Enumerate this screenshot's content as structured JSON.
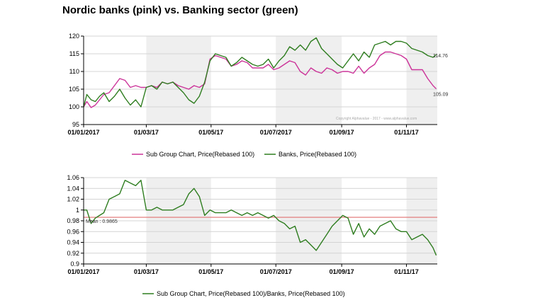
{
  "page": {
    "title": "Nordic banks (pink) vs. Banking sector (green)"
  },
  "colors": {
    "pink": "#cc3399",
    "green": "#2e7d1f",
    "mean_line": "#e07070",
    "band": "#efefef",
    "axis": "#000000"
  },
  "chart_data": [
    {
      "type": "line",
      "ylim": [
        95,
        120
      ],
      "yticks": [
        "95",
        "100",
        "105",
        "110",
        "115",
        "120"
      ],
      "xticks": [
        "01/01/2017",
        "01/03/17",
        "01/05/17",
        "01/07/2017",
        "01/09/17",
        "01/11/17"
      ],
      "x_domain": [
        "2017-01-01",
        "2017-11-30"
      ],
      "shaded_bands": [
        [
          "2017-03-01",
          "2017-05-01"
        ],
        [
          "2017-07-01",
          "2017-09-01"
        ],
        [
          "2017-11-01",
          "2017-11-30"
        ]
      ],
      "grid": "horizontal",
      "watermark": "Copyright Alphavalue - 2017 - www.alphavalue.com",
      "series": [
        {
          "name": "Sub Group Chart, Price(Rebased 100)",
          "color": "#cc3399",
          "end_label": "105.09",
          "x": [
            "2017-01-01",
            "2017-01-04",
            "2017-01-08",
            "2017-01-12",
            "2017-01-16",
            "2017-01-20",
            "2017-01-25",
            "2017-01-30",
            "2017-02-04",
            "2017-02-09",
            "2017-02-14",
            "2017-02-19",
            "2017-02-24",
            "2017-03-01",
            "2017-03-06",
            "2017-03-11",
            "2017-03-16",
            "2017-03-21",
            "2017-03-26",
            "2017-03-31",
            "2017-04-05",
            "2017-04-10",
            "2017-04-15",
            "2017-04-20",
            "2017-04-25",
            "2017-04-30",
            "2017-05-05",
            "2017-05-10",
            "2017-05-15",
            "2017-05-20",
            "2017-05-25",
            "2017-05-30",
            "2017-06-04",
            "2017-06-09",
            "2017-06-14",
            "2017-06-19",
            "2017-06-24",
            "2017-06-29",
            "2017-07-04",
            "2017-07-09",
            "2017-07-14",
            "2017-07-19",
            "2017-07-24",
            "2017-07-29",
            "2017-08-03",
            "2017-08-08",
            "2017-08-13",
            "2017-08-18",
            "2017-08-23",
            "2017-08-28",
            "2017-09-02",
            "2017-09-07",
            "2017-09-12",
            "2017-09-17",
            "2017-09-22",
            "2017-09-27",
            "2017-10-02",
            "2017-10-07",
            "2017-10-12",
            "2017-10-17",
            "2017-10-22",
            "2017-10-27",
            "2017-11-01",
            "2017-11-06",
            "2017-11-11",
            "2017-11-16",
            "2017-11-21",
            "2017-11-26",
            "2017-11-29"
          ],
          "values": [
            100,
            101.5,
            99.8,
            100.5,
            102,
            103.5,
            104,
            106,
            108,
            107.5,
            105.5,
            106,
            105.5,
            105.5,
            106,
            105.5,
            107,
            106.5,
            107,
            106,
            105.5,
            105,
            106,
            105.5,
            106.5,
            113.5,
            114.5,
            114,
            113.5,
            111.5,
            112,
            113,
            112.5,
            111,
            111,
            111,
            112,
            110.5,
            111,
            112,
            113,
            112.5,
            110,
            109,
            111,
            110,
            109.5,
            111,
            110.5,
            109.5,
            110,
            110,
            109.5,
            111.5,
            109.5,
            111,
            112,
            114.5,
            115.5,
            115.5,
            115,
            114.5,
            113.5,
            110.5,
            110.5,
            110.5,
            108,
            106,
            105.09
          ]
        },
        {
          "name": "Banks, Price(Rebased 100)",
          "color": "#2e7d1f",
          "end_label": "114.76",
          "x": [
            "2017-01-01",
            "2017-01-04",
            "2017-01-08",
            "2017-01-12",
            "2017-01-16",
            "2017-01-20",
            "2017-01-25",
            "2017-01-30",
            "2017-02-04",
            "2017-02-09",
            "2017-02-14",
            "2017-02-19",
            "2017-02-24",
            "2017-03-01",
            "2017-03-06",
            "2017-03-11",
            "2017-03-16",
            "2017-03-21",
            "2017-03-26",
            "2017-03-31",
            "2017-04-05",
            "2017-04-10",
            "2017-04-15",
            "2017-04-20",
            "2017-04-25",
            "2017-04-30",
            "2017-05-05",
            "2017-05-10",
            "2017-05-15",
            "2017-05-20",
            "2017-05-25",
            "2017-05-30",
            "2017-06-04",
            "2017-06-09",
            "2017-06-14",
            "2017-06-19",
            "2017-06-24",
            "2017-06-29",
            "2017-07-04",
            "2017-07-09",
            "2017-07-14",
            "2017-07-19",
            "2017-07-24",
            "2017-07-29",
            "2017-08-03",
            "2017-08-08",
            "2017-08-13",
            "2017-08-18",
            "2017-08-23",
            "2017-08-28",
            "2017-09-02",
            "2017-09-07",
            "2017-09-12",
            "2017-09-17",
            "2017-09-22",
            "2017-09-27",
            "2017-10-02",
            "2017-10-07",
            "2017-10-12",
            "2017-10-17",
            "2017-10-22",
            "2017-10-27",
            "2017-11-01",
            "2017-11-06",
            "2017-11-11",
            "2017-11-16",
            "2017-11-21",
            "2017-11-26",
            "2017-11-29"
          ],
          "values": [
            100,
            103.5,
            102,
            101.5,
            103,
            104,
            101.5,
            103,
            105,
            102.5,
            100.5,
            102,
            100,
            105.5,
            106,
            105,
            107,
            106.5,
            107,
            105.5,
            104,
            102,
            101,
            103,
            107,
            113,
            115,
            114.5,
            114,
            111.5,
            112.5,
            114,
            113,
            112,
            111.5,
            112,
            113.5,
            111,
            113,
            114.5,
            117,
            116,
            117.5,
            116,
            118.5,
            119.5,
            116.5,
            115,
            113.5,
            112,
            111,
            113,
            115,
            113,
            115.5,
            114,
            117.5,
            118,
            118.5,
            117.5,
            118.5,
            118.5,
            118,
            116.5,
            116,
            115.5,
            114.5,
            114,
            114.76
          ]
        }
      ],
      "legend": [
        "Sub Group Chart, Price(Rebased 100)",
        "Banks, Price(Rebased 100)"
      ]
    },
    {
      "type": "line",
      "ylim": [
        0.9,
        1.06
      ],
      "yticks": [
        "0.9",
        "0.92",
        "0.94",
        "0.96",
        "0.98",
        "1",
        "1.02",
        "1.04",
        "1.06"
      ],
      "xticks": [
        "01/01/2017",
        "01/03/17",
        "01/05/17",
        "01/07/2017",
        "01/09/17",
        "01/11/17"
      ],
      "x_domain": [
        "2017-01-01",
        "2017-11-30"
      ],
      "shaded_bands": [
        [
          "2017-03-01",
          "2017-05-01"
        ],
        [
          "2017-07-01",
          "2017-09-01"
        ],
        [
          "2017-11-01",
          "2017-11-30"
        ]
      ],
      "grid": "horizontal",
      "mean": {
        "label": "Mean : 0.9865",
        "value": 0.9865
      },
      "series": [
        {
          "name": "Sub Group Chart, Price(Rebased 100)/Banks, Price(Rebased 100)",
          "color": "#2e7d1f",
          "x": [
            "2017-01-01",
            "2017-01-04",
            "2017-01-08",
            "2017-01-12",
            "2017-01-16",
            "2017-01-20",
            "2017-01-25",
            "2017-01-30",
            "2017-02-04",
            "2017-02-09",
            "2017-02-14",
            "2017-02-19",
            "2017-02-24",
            "2017-03-01",
            "2017-03-06",
            "2017-03-11",
            "2017-03-16",
            "2017-03-21",
            "2017-03-26",
            "2017-03-31",
            "2017-04-05",
            "2017-04-10",
            "2017-04-15",
            "2017-04-20",
            "2017-04-25",
            "2017-04-30",
            "2017-05-05",
            "2017-05-10",
            "2017-05-15",
            "2017-05-20",
            "2017-05-25",
            "2017-05-30",
            "2017-06-04",
            "2017-06-09",
            "2017-06-14",
            "2017-06-19",
            "2017-06-24",
            "2017-06-29",
            "2017-07-04",
            "2017-07-09",
            "2017-07-14",
            "2017-07-19",
            "2017-07-24",
            "2017-07-29",
            "2017-08-03",
            "2017-08-08",
            "2017-08-13",
            "2017-08-18",
            "2017-08-23",
            "2017-08-28",
            "2017-09-02",
            "2017-09-07",
            "2017-09-12",
            "2017-09-17",
            "2017-09-22",
            "2017-09-27",
            "2017-10-02",
            "2017-10-07",
            "2017-10-12",
            "2017-10-17",
            "2017-10-22",
            "2017-10-27",
            "2017-11-01",
            "2017-11-06",
            "2017-11-11",
            "2017-11-16",
            "2017-11-21",
            "2017-11-26",
            "2017-11-29"
          ],
          "values": [
            1.0,
            1.0,
            0.975,
            0.985,
            0.99,
            0.995,
            1.02,
            1.025,
            1.03,
            1.055,
            1.05,
            1.045,
            1.055,
            1.0,
            1.0,
            1.005,
            1.0,
            1.0,
            1.0,
            1.005,
            1.01,
            1.03,
            1.04,
            1.025,
            0.99,
            1.0,
            0.995,
            0.995,
            0.995,
            1.0,
            0.995,
            0.99,
            0.995,
            0.99,
            0.995,
            0.99,
            0.985,
            0.99,
            0.98,
            0.975,
            0.965,
            0.97,
            0.94,
            0.945,
            0.935,
            0.925,
            0.94,
            0.955,
            0.97,
            0.98,
            0.99,
            0.985,
            0.955,
            0.975,
            0.95,
            0.965,
            0.955,
            0.97,
            0.975,
            0.98,
            0.965,
            0.96,
            0.96,
            0.945,
            0.95,
            0.955,
            0.945,
            0.93,
            0.916
          ]
        }
      ],
      "legend": [
        "Sub Group Chart, Price(Rebased 100)/Banks, Price(Rebased 100)"
      ]
    }
  ]
}
